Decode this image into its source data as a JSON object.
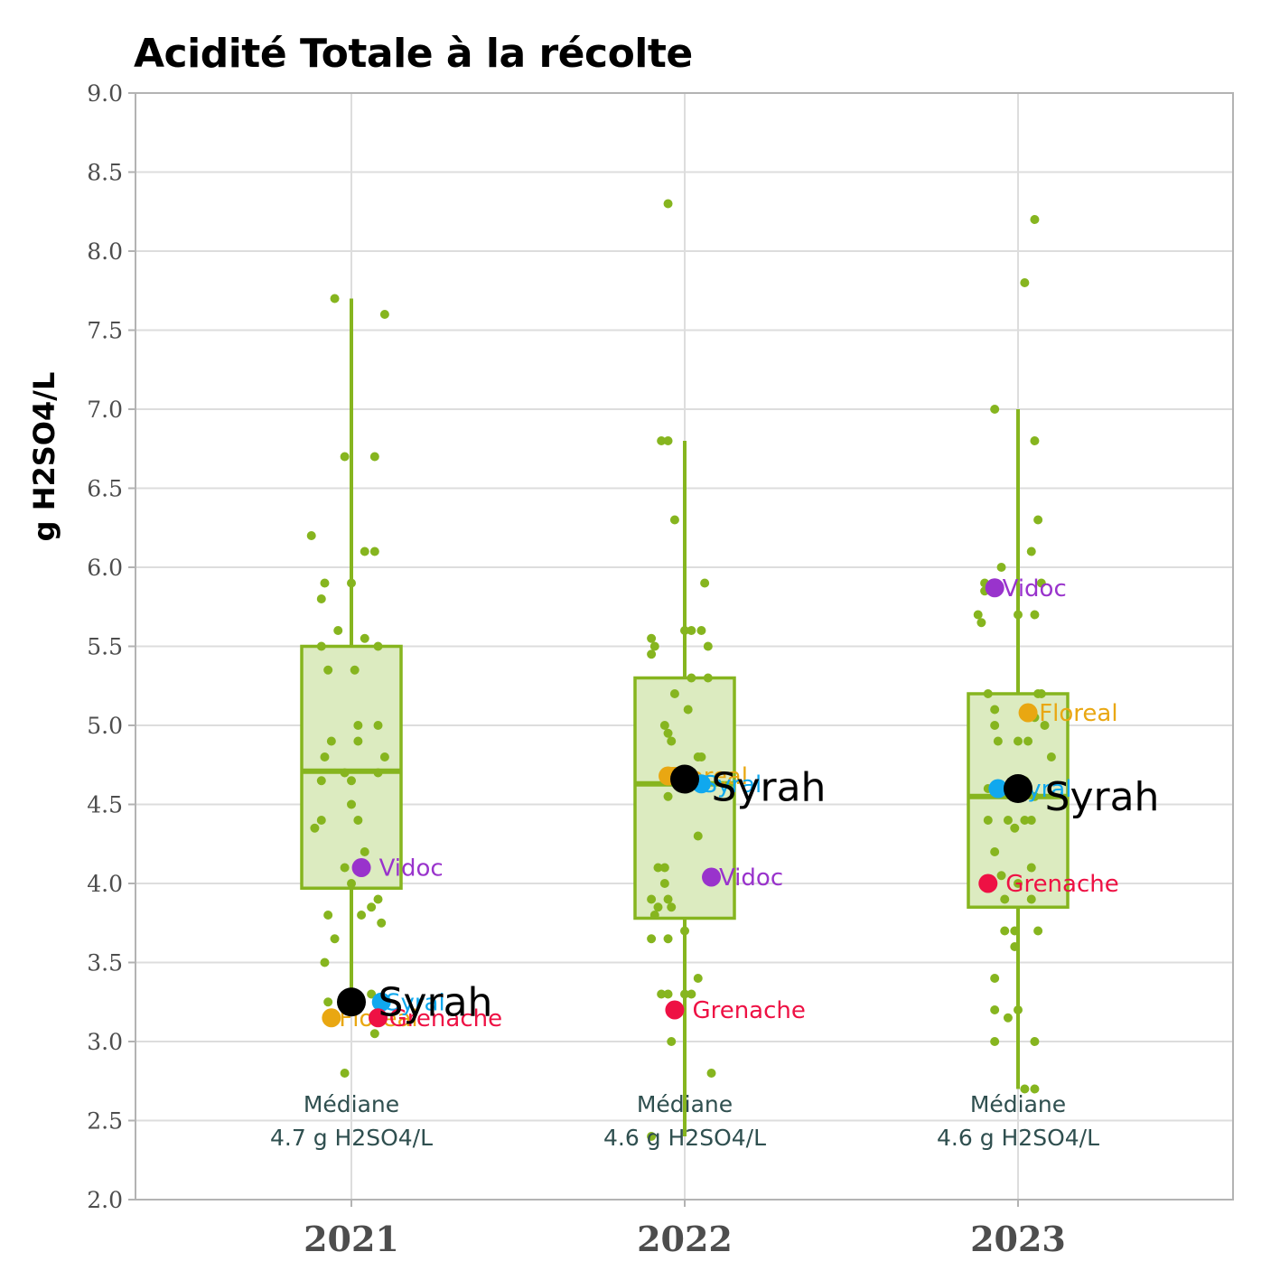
{
  "chart_data": {
    "type": "box",
    "title": "Acidité Totale à la récolte",
    "ylabel": "g H2SO4/L",
    "xlabel": "",
    "ylim": [
      2.0,
      9.0
    ],
    "yticks": [
      "2.0",
      "2.5",
      "3.0",
      "3.5",
      "4.0",
      "4.5",
      "5.0",
      "5.5",
      "6.0",
      "6.5",
      "7.0",
      "7.5",
      "8.0",
      "8.5",
      "9.0"
    ],
    "categories": [
      "2021",
      "2022",
      "2023"
    ],
    "grid": true,
    "colors": {
      "box_fill": "#dcebc0",
      "box_line": "#86b51f",
      "points": "#86b51f",
      "grid": "#dddddd",
      "axis": "#b3b3b3",
      "Syrah": "#000000",
      "Floreal": "#e9a712",
      "Grenache": "#ee1144",
      "Vidoc": "#9933cc",
      "Syral": "#10a8ee"
    },
    "boxes": [
      {
        "year": "2021",
        "q1": 3.97,
        "median": 4.71,
        "q3": 5.5,
        "whisker_low": 3.25,
        "whisker_high": 7.7
      },
      {
        "year": "2022",
        "q1": 3.78,
        "median": 4.63,
        "q3": 5.3,
        "whisker_low": 2.4,
        "whisker_high": 6.8
      },
      {
        "year": "2023",
        "q1": 3.85,
        "median": 4.55,
        "q3": 5.2,
        "whisker_low": 2.7,
        "whisker_high": 7.0
      }
    ],
    "medians_text": [
      {
        "line1": "Médiane",
        "line2": "4.7 g H2SO4/L"
      },
      {
        "line1": "Médiane",
        "line2": "4.6 g H2SO4/L"
      },
      {
        "line1": "Médiane",
        "line2": "4.6 g H2SO4/L"
      }
    ],
    "points": [
      [
        [
          -0.05,
          7.7
        ],
        [
          0.1,
          7.6
        ],
        [
          0.07,
          6.7
        ],
        [
          -0.02,
          6.7
        ],
        [
          -0.12,
          6.2
        ],
        [
          0.07,
          6.1
        ],
        [
          0.04,
          6.1
        ],
        [
          -0.08,
          5.9
        ],
        [
          0.0,
          5.9
        ],
        [
          -0.09,
          5.8
        ],
        [
          -0.04,
          5.6
        ],
        [
          0.04,
          5.55
        ],
        [
          0.08,
          5.5
        ],
        [
          -0.09,
          5.5
        ],
        [
          0.01,
          5.35
        ],
        [
          -0.07,
          5.35
        ],
        [
          0.08,
          5.0
        ],
        [
          0.02,
          5.0
        ],
        [
          -0.06,
          4.9
        ],
        [
          0.02,
          4.9
        ],
        [
          -0.08,
          4.8
        ],
        [
          0.1,
          4.8
        ],
        [
          -0.02,
          4.7
        ],
        [
          0.08,
          4.7
        ],
        [
          0.0,
          4.65
        ],
        [
          -0.09,
          4.65
        ],
        [
          0.0,
          4.5
        ],
        [
          -0.09,
          4.4
        ],
        [
          0.02,
          4.4
        ],
        [
          -0.11,
          4.35
        ],
        [
          0.04,
          4.2
        ],
        [
          -0.02,
          4.1
        ],
        [
          0.0,
          4.0
        ],
        [
          0.08,
          3.9
        ],
        [
          -0.07,
          3.8
        ],
        [
          0.03,
          3.8
        ],
        [
          0.06,
          3.85
        ],
        [
          -0.05,
          3.65
        ],
        [
          0.09,
          3.75
        ],
        [
          -0.08,
          3.5
        ],
        [
          0.06,
          3.3
        ],
        [
          0.02,
          3.28
        ],
        [
          -0.07,
          3.25
        ],
        [
          0.07,
          3.05
        ],
        [
          -0.02,
          2.8
        ]
      ],
      [
        [
          -0.05,
          8.3
        ],
        [
          -0.07,
          6.8
        ],
        [
          -0.05,
          6.8
        ],
        [
          -0.03,
          6.3
        ],
        [
          0.06,
          5.9
        ],
        [
          -0.1,
          5.55
        ],
        [
          -0.09,
          5.5
        ],
        [
          -0.1,
          5.45
        ],
        [
          0.0,
          5.6
        ],
        [
          0.02,
          5.6
        ],
        [
          0.05,
          5.6
        ],
        [
          0.07,
          5.5
        ],
        [
          0.07,
          5.3
        ],
        [
          0.02,
          5.3
        ],
        [
          -0.03,
          5.2
        ],
        [
          0.01,
          5.1
        ],
        [
          -0.06,
          5.0
        ],
        [
          -0.05,
          4.95
        ],
        [
          0.04,
          4.8
        ],
        [
          0.05,
          4.8
        ],
        [
          -0.04,
          4.9
        ],
        [
          0.0,
          4.65
        ],
        [
          -0.05,
          4.55
        ],
        [
          0.04,
          4.3
        ],
        [
          -0.08,
          4.1
        ],
        [
          -0.06,
          4.1
        ],
        [
          -0.06,
          4.0
        ],
        [
          -0.1,
          3.9
        ],
        [
          -0.05,
          3.9
        ],
        [
          -0.08,
          3.85
        ],
        [
          -0.04,
          3.85
        ],
        [
          -0.09,
          3.8
        ],
        [
          -0.1,
          3.65
        ],
        [
          -0.05,
          3.65
        ],
        [
          0.0,
          3.7
        ],
        [
          -0.07,
          3.3
        ],
        [
          -0.05,
          3.3
        ],
        [
          0.02,
          3.3
        ],
        [
          0.0,
          3.3
        ],
        [
          0.04,
          3.4
        ],
        [
          -0.04,
          3.0
        ],
        [
          0.08,
          2.8
        ],
        [
          -0.1,
          2.4
        ]
      ],
      [
        [
          0.05,
          8.2
        ],
        [
          0.02,
          7.8
        ],
        [
          -0.07,
          7.0
        ],
        [
          0.05,
          6.8
        ],
        [
          0.06,
          6.3
        ],
        [
          0.04,
          6.1
        ],
        [
          -0.05,
          6.0
        ],
        [
          -0.1,
          5.9
        ],
        [
          0.07,
          5.9
        ],
        [
          -0.1,
          5.85
        ],
        [
          -0.12,
          5.7
        ],
        [
          0.0,
          5.7
        ],
        [
          -0.11,
          5.65
        ],
        [
          0.05,
          5.7
        ],
        [
          -0.09,
          5.2
        ],
        [
          0.06,
          5.2
        ],
        [
          0.07,
          5.2
        ],
        [
          -0.07,
          5.1
        ],
        [
          -0.07,
          5.0
        ],
        [
          0.05,
          5.05
        ],
        [
          0.08,
          5.0
        ],
        [
          -0.06,
          4.9
        ],
        [
          0.03,
          4.9
        ],
        [
          0.0,
          4.9
        ],
        [
          0.1,
          4.8
        ],
        [
          0.02,
          4.65
        ],
        [
          -0.09,
          4.6
        ],
        [
          -0.02,
          4.6
        ],
        [
          0.05,
          4.55
        ],
        [
          -0.09,
          4.4
        ],
        [
          -0.03,
          4.4
        ],
        [
          0.04,
          4.4
        ],
        [
          0.02,
          4.4
        ],
        [
          -0.01,
          4.35
        ],
        [
          -0.07,
          4.2
        ],
        [
          0.04,
          4.1
        ],
        [
          -0.05,
          4.05
        ],
        [
          0.0,
          4.0
        ],
        [
          -0.04,
          3.9
        ],
        [
          0.04,
          3.9
        ],
        [
          -0.04,
          3.7
        ],
        [
          -0.01,
          3.7
        ],
        [
          0.06,
          3.7
        ],
        [
          -0.01,
          3.6
        ],
        [
          -0.07,
          3.4
        ],
        [
          -0.07,
          3.2
        ],
        [
          0.0,
          3.2
        ],
        [
          -0.03,
          3.15
        ],
        [
          -0.07,
          3.0
        ],
        [
          0.05,
          3.0
        ],
        [
          0.02,
          2.7
        ],
        [
          0.05,
          2.7
        ]
      ]
    ],
    "highlights": [
      {
        "cat": 0,
        "name": "Vidoc",
        "x": 0.03,
        "y": 4.1,
        "label_dx": 0.08,
        "label_dy": 0.0,
        "size": "small"
      },
      {
        "cat": 0,
        "name": "Floreal",
        "x": -0.06,
        "y": 3.15,
        "label_dx": 0.05,
        "label_dy": 0.0,
        "size": "small"
      },
      {
        "cat": 0,
        "name": "Syral",
        "x": 0.09,
        "y": 3.25,
        "label_dx": 0.04,
        "label_dy": 0.0,
        "size": "small"
      },
      {
        "cat": 0,
        "name": "Grenache",
        "x": 0.08,
        "y": 3.15,
        "label_dx": 0.06,
        "label_dy": 0.0,
        "size": "small"
      },
      {
        "cat": 0,
        "name": "Syrah",
        "x": 0.0,
        "y": 3.25,
        "label_dx": 0.08,
        "label_dy": 0.0,
        "size": "big"
      },
      {
        "cat": 1,
        "name": "Floreal",
        "x": -0.05,
        "y": 4.68,
        "label_dx": 0.03,
        "label_dy": 0.0,
        "size": "small"
      },
      {
        "cat": 1,
        "name": "Syral",
        "x": 0.05,
        "y": 4.63,
        "label_dx": 0.03,
        "label_dy": 0.0,
        "size": "small"
      },
      {
        "cat": 1,
        "name": "Vidoc",
        "x": 0.08,
        "y": 4.04,
        "label_dx": 0.05,
        "label_dy": 0.0,
        "size": "small"
      },
      {
        "cat": 1,
        "name": "Grenache",
        "x": -0.03,
        "y": 3.2,
        "label_dx": 0.08,
        "label_dy": 0.0,
        "size": "small"
      },
      {
        "cat": 1,
        "name": "Syrah",
        "x": 0.0,
        "y": 4.66,
        "label_dx": 0.08,
        "label_dy": -0.05,
        "size": "big"
      },
      {
        "cat": 2,
        "name": "Vidoc",
        "x": -0.07,
        "y": 5.87,
        "label_dx": 0.05,
        "label_dy": 0.0,
        "size": "small"
      },
      {
        "cat": 2,
        "name": "Floreal",
        "x": 0.03,
        "y": 5.08,
        "label_dx": 0.06,
        "label_dy": 0.0,
        "size": "small"
      },
      {
        "cat": 2,
        "name": "Syral",
        "x": -0.06,
        "y": 4.6,
        "label_dx": 0.07,
        "label_dy": 0.0,
        "size": "small"
      },
      {
        "cat": 2,
        "name": "Grenache",
        "x": -0.09,
        "y": 4.0,
        "label_dx": 0.08,
        "label_dy": 0.0,
        "size": "small"
      },
      {
        "cat": 2,
        "name": "Syrah",
        "x": 0.0,
        "y": 4.6,
        "label_dx": 0.08,
        "label_dy": -0.05,
        "size": "big"
      }
    ]
  }
}
